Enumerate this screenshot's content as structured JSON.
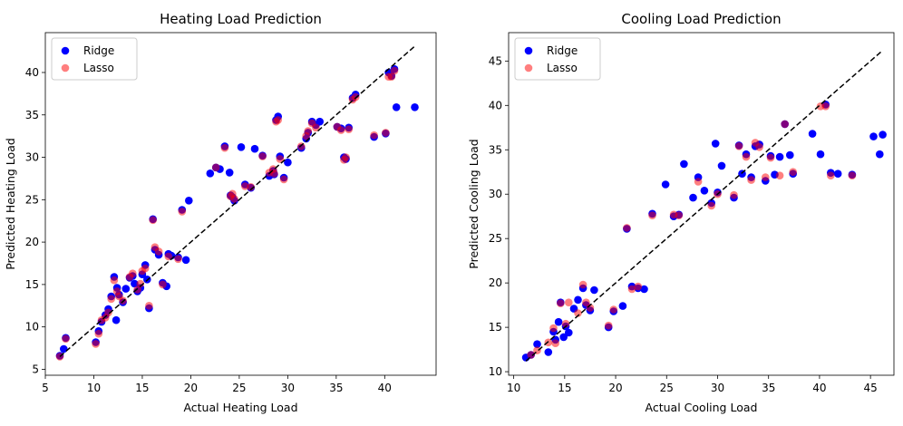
{
  "chart_data": [
    {
      "type": "scatter",
      "title": "Heating Load Prediction",
      "xlabel": "Actual Heating Load",
      "ylabel": "Predicted Heating Load",
      "xlim": [
        5.0,
        45.3
      ],
      "ylim": [
        4.3,
        44.7
      ],
      "xticks": [
        5,
        10,
        15,
        20,
        25,
        30,
        35,
        40
      ],
      "yticks": [
        5,
        10,
        15,
        20,
        25,
        30,
        35,
        40
      ],
      "xtick_labels": [
        "5",
        "10",
        "15",
        "20",
        "25",
        "30",
        "35",
        "40"
      ],
      "ytick_labels": [
        "5",
        "10",
        "15",
        "20",
        "25",
        "30",
        "35",
        "40"
      ],
      "legend_position": "top-left",
      "reference_line": {
        "from": [
          6.5,
          6.5
        ],
        "to": [
          43.1,
          43.1
        ],
        "style": "dashed",
        "color": "#000000"
      },
      "series": [
        {
          "name": "Ridge",
          "color": "#0000ff",
          "alpha": 1.0,
          "x": [
            6.5,
            6.9,
            7.1,
            10.2,
            10.5,
            10.8,
            11.2,
            11.5,
            11.8,
            12.1,
            12.3,
            12.4,
            12.6,
            13.0,
            13.3,
            13.7,
            14.0,
            14.2,
            14.5,
            14.8,
            15.0,
            15.3,
            15.5,
            15.7,
            16.1,
            16.3,
            16.7,
            17.1,
            17.5,
            17.7,
            18.0,
            18.7,
            19.1,
            19.5,
            19.8,
            22.0,
            22.6,
            23.0,
            23.5,
            24.0,
            24.1,
            24.3,
            24.5,
            25.2,
            25.6,
            26.2,
            26.6,
            27.4,
            28.1,
            28.5,
            28.6,
            28.8,
            29.0,
            29.2,
            29.6,
            30.0,
            31.4,
            31.9,
            32.1,
            32.5,
            32.9,
            33.3,
            35.1,
            35.5,
            35.8,
            36.0,
            36.3,
            36.7,
            37.0,
            38.9,
            40.1,
            40.4,
            40.7,
            41.0,
            41.2,
            43.1
          ],
          "y": [
            6.6,
            7.4,
            8.7,
            8.2,
            9.5,
            10.6,
            11.4,
            12.1,
            13.6,
            15.9,
            10.8,
            14.6,
            13.8,
            12.9,
            14.5,
            15.8,
            16.0,
            15.1,
            14.2,
            14.6,
            16.2,
            17.3,
            15.6,
            12.2,
            22.7,
            19.1,
            18.5,
            15.2,
            14.8,
            18.6,
            18.4,
            18.2,
            23.8,
            17.9,
            24.9,
            28.1,
            28.8,
            28.6,
            31.3,
            28.2,
            25.5,
            25.3,
            24.9,
            31.2,
            26.8,
            26.4,
            31.0,
            30.2,
            27.8,
            28.4,
            28.0,
            34.4,
            34.8,
            30.1,
            27.6,
            29.4,
            31.1,
            32.2,
            32.9,
            34.2,
            33.8,
            34.2,
            33.6,
            33.4,
            30.0,
            29.8,
            33.5,
            37.0,
            37.4,
            32.4,
            32.8,
            40.0,
            39.6,
            40.4,
            35.9,
            35.9
          ]
        },
        {
          "name": "Lasso",
          "color": "#ff0000",
          "alpha": 0.5,
          "x": [
            6.5,
            7.1,
            10.2,
            10.5,
            10.8,
            11.2,
            11.5,
            11.8,
            12.1,
            12.4,
            12.6,
            13.0,
            13.7,
            14.0,
            14.5,
            14.8,
            15.0,
            15.3,
            15.7,
            16.1,
            16.3,
            16.7,
            17.1,
            17.7,
            18.7,
            19.1,
            22.6,
            23.5,
            24.1,
            24.3,
            24.5,
            25.6,
            26.2,
            27.4,
            28.1,
            28.5,
            28.6,
            28.8,
            29.0,
            29.2,
            29.6,
            31.4,
            31.9,
            32.1,
            32.5,
            32.9,
            35.1,
            35.5,
            35.8,
            36.0,
            36.3,
            36.7,
            37.0,
            38.9,
            40.1,
            40.4,
            40.7,
            41.0
          ],
          "y": [
            6.5,
            8.6,
            8.0,
            9.2,
            10.8,
            11.1,
            11.7,
            13.3,
            15.5,
            14.2,
            13.6,
            13.1,
            15.9,
            16.3,
            14.4,
            15.1,
            16.6,
            16.9,
            12.5,
            22.6,
            19.4,
            18.9,
            15.0,
            18.3,
            18.0,
            23.6,
            28.8,
            31.1,
            25.4,
            25.7,
            25.1,
            26.6,
            26.5,
            30.1,
            28.2,
            28.6,
            28.1,
            34.2,
            34.4,
            29.8,
            27.4,
            31.3,
            32.5,
            33.1,
            34.0,
            33.5,
            33.6,
            33.2,
            29.7,
            30.0,
            33.3,
            36.8,
            37.1,
            32.6,
            32.9,
            39.5,
            39.5,
            40.2
          ]
        }
      ]
    },
    {
      "type": "scatter",
      "title": "Cooling Load Prediction",
      "xlabel": "Actual Cooling Load",
      "ylabel": "Predicted Cooling Load",
      "xlim": [
        9.5,
        47.3
      ],
      "ylim": [
        9.6,
        48.2
      ],
      "xticks": [
        10,
        15,
        20,
        25,
        30,
        35,
        40,
        45
      ],
      "yticks": [
        10,
        15,
        20,
        25,
        30,
        35,
        40,
        45
      ],
      "xtick_labels": [
        "10",
        "15",
        "20",
        "25",
        "30",
        "35",
        "40",
        "45"
      ],
      "ytick_labels": [
        "10",
        "15",
        "20",
        "25",
        "30",
        "35",
        "40",
        "45"
      ],
      "legend_position": "top-left",
      "reference_line": {
        "from": [
          11.2,
          11.2
        ],
        "to": [
          46.2,
          46.2
        ],
        "style": "dashed",
        "color": "#000000"
      },
      "series": [
        {
          "name": "Ridge",
          "color": "#0000ff",
          "alpha": 1.0,
          "x": [
            11.2,
            11.7,
            12.3,
            13.4,
            13.9,
            14.1,
            14.4,
            14.6,
            14.9,
            15.1,
            15.4,
            15.9,
            16.3,
            16.8,
            17.1,
            17.5,
            17.9,
            19.3,
            19.8,
            20.7,
            21.1,
            21.6,
            22.2,
            22.8,
            23.6,
            24.9,
            25.7,
            26.2,
            26.7,
            27.6,
            28.1,
            28.7,
            29.4,
            29.8,
            30.0,
            30.4,
            31.6,
            32.1,
            32.4,
            32.8,
            33.3,
            33.7,
            34.1,
            34.7,
            35.2,
            35.6,
            36.1,
            36.6,
            37.1,
            37.4,
            39.3,
            40.1,
            40.6,
            41.1,
            41.8,
            43.2,
            45.3,
            45.9,
            46.2
          ],
          "y": [
            11.6,
            11.9,
            13.1,
            12.2,
            14.5,
            13.6,
            15.6,
            17.8,
            13.9,
            15.1,
            14.4,
            17.1,
            18.1,
            19.4,
            17.5,
            16.9,
            19.2,
            15.0,
            16.8,
            17.4,
            26.1,
            19.6,
            19.4,
            19.3,
            27.8,
            31.1,
            27.5,
            27.7,
            33.4,
            29.6,
            31.9,
            30.4,
            29.0,
            35.7,
            30.2,
            33.2,
            29.6,
            35.5,
            32.3,
            34.5,
            31.9,
            35.4,
            35.6,
            31.5,
            34.3,
            32.2,
            34.2,
            37.9,
            34.4,
            32.3,
            36.8,
            34.5,
            40.1,
            32.4,
            32.3,
            32.2,
            36.5,
            34.5,
            36.7
          ]
        },
        {
          "name": "Lasso",
          "color": "#ff0000",
          "alpha": 0.5,
          "x": [
            11.7,
            12.3,
            13.4,
            13.9,
            14.1,
            14.6,
            15.1,
            15.4,
            16.3,
            16.8,
            17.1,
            17.5,
            19.3,
            19.8,
            21.1,
            21.6,
            22.2,
            23.6,
            25.7,
            26.2,
            28.1,
            29.4,
            30.0,
            31.6,
            32.1,
            32.8,
            33.3,
            33.7,
            34.1,
            34.7,
            35.2,
            36.1,
            36.6,
            37.4,
            40.1,
            40.6,
            41.1,
            43.2
          ],
          "y": [
            11.9,
            12.4,
            13.3,
            14.9,
            13.2,
            17.7,
            15.4,
            17.8,
            16.6,
            19.8,
            17.8,
            17.2,
            15.2,
            17.0,
            26.2,
            19.3,
            19.6,
            27.6,
            27.7,
            27.6,
            31.4,
            28.7,
            30.0,
            29.9,
            35.4,
            34.2,
            31.6,
            35.8,
            35.3,
            31.9,
            34.1,
            32.1,
            37.9,
            32.5,
            39.9,
            39.9,
            32.1,
            32.1
          ]
        }
      ]
    }
  ]
}
